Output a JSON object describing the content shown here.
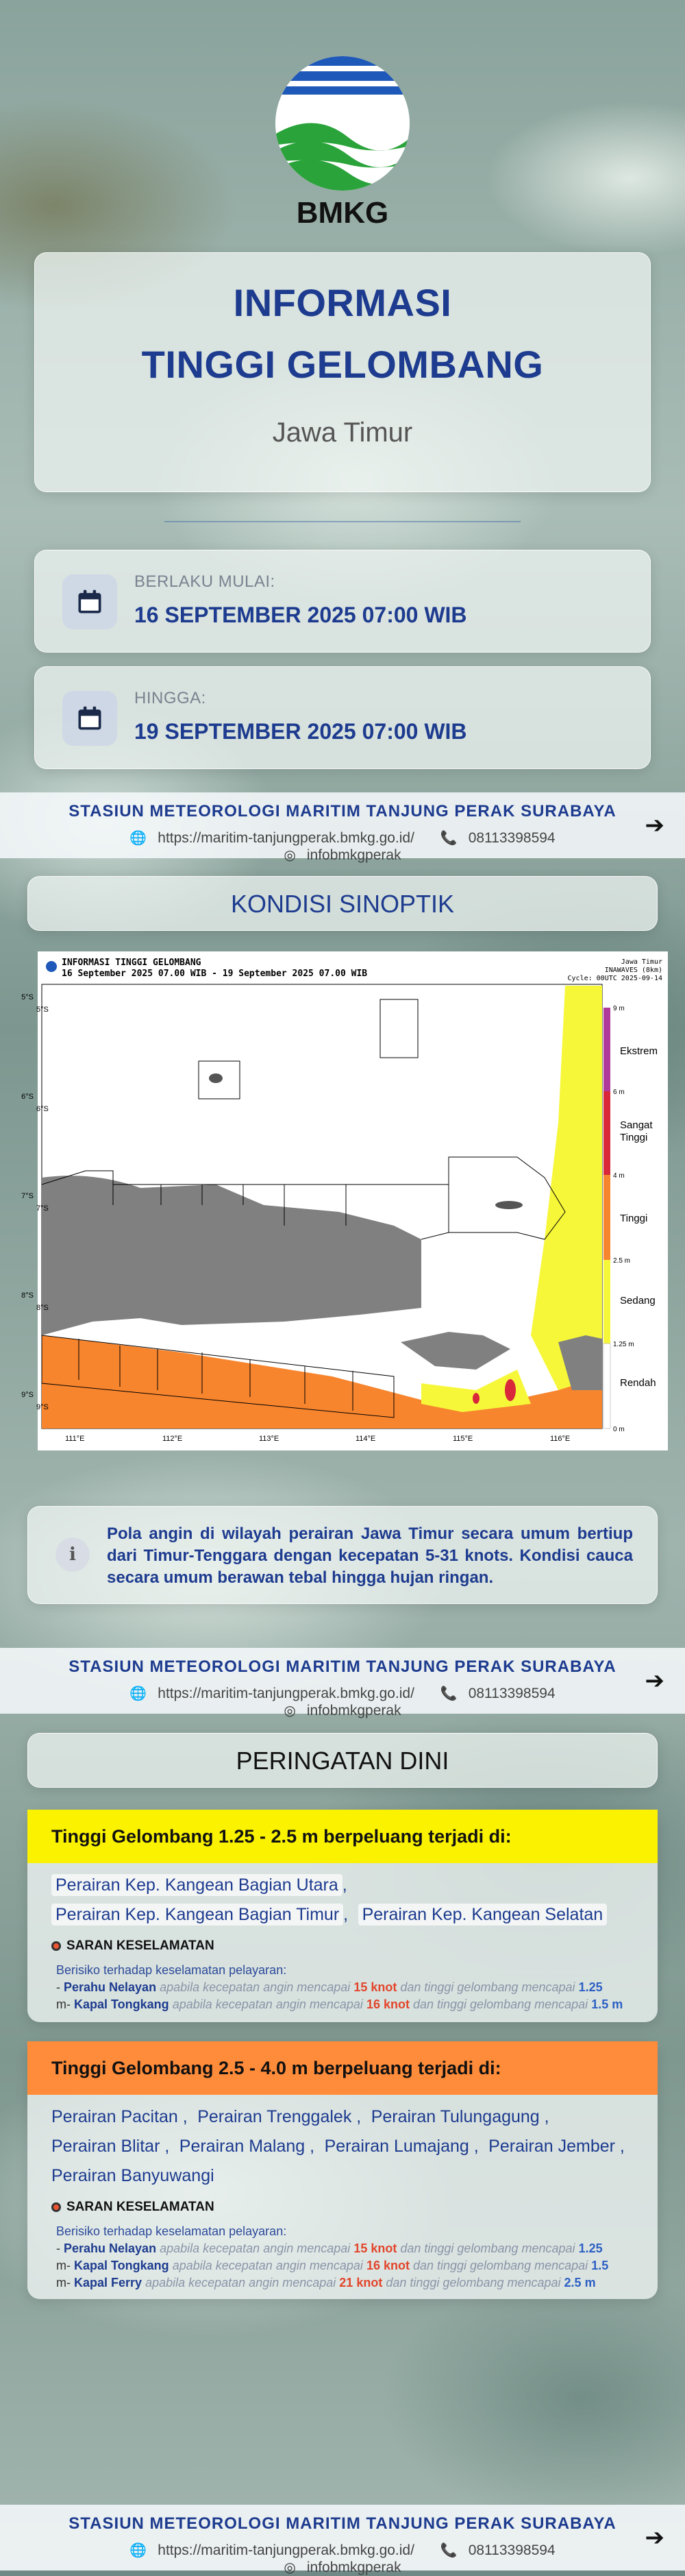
{
  "logo": {
    "text": "BMKG"
  },
  "header": {
    "title_line1": "INFORMASI",
    "title_line2": "TINGGI GELOMBANG",
    "region": "Jawa Timur"
  },
  "validity": {
    "start_label": "BERLAKU MULAI:",
    "start_value": "16 SEPTEMBER 2025 07:00 WIB",
    "end_label": "HINGGA:",
    "end_value": "19 SEPTEMBER 2025 07:00 WIB"
  },
  "station": {
    "name": "STASIUN METEOROLOGI MARITIM TANJUNG PERAK SURABAYA",
    "website": "https://maritim-tanjungperak.bmkg.go.id/",
    "phone": "08113398594",
    "instagram": "infobmkgperak"
  },
  "sinoptik": {
    "heading": "KONDISI SINOPTIK",
    "map": {
      "title": "INFORMASI TINGGI GELOMBANG",
      "period": "16 September 2025 07.00 WIB - 19 September 2025 07.00 WIB",
      "region": "Jawa Timur",
      "model": "INAWAVES (8km)",
      "cycle": "Cycle: 00UTC 2025-09-14",
      "lat_labels": [
        "5°S",
        "6°S",
        "7°S",
        "8°S",
        "9°S"
      ],
      "lon_labels": [
        "111°E",
        "112°E",
        "113°E",
        "114°E",
        "115°E",
        "116°E"
      ],
      "legend": [
        {
          "label": "Ekstrem",
          "color": "#b03a9a"
        },
        {
          "label": "Sangat Tinggi",
          "color": "#d8283a"
        },
        {
          "label": "Tinggi",
          "color": "#f7852e"
        },
        {
          "label": "Sedang",
          "color": "#f7f73a"
        },
        {
          "label": "Rendah",
          "color": "#ffffff"
        }
      ],
      "legend_ticks": [
        "9 m",
        "6 m",
        "4 m",
        "2.5 m",
        "1.25 m",
        "0 m"
      ]
    },
    "description": "Pola angin di wilayah perairan Jawa Timur secara umum bertiup dari Timur-Tenggara dengan kecepatan 5-31 knots. Kondisi cauca secara umum berawan tebal hingga hujan ringan."
  },
  "peringatan": {
    "heading": "PERINGATAN DINI",
    "saran_label": "SARAN KESELAMATAN",
    "risk_label": "Berisiko terhadap keselamatan pelayaran:",
    "warnings": [
      {
        "title": "Tinggi Gelombang 1.25 - 2.5 m berpeluang terjadi di:",
        "areas": [
          "Perairan Kep. Kangean Bagian Utara",
          "Perairan Kep. Kangean Bagian Timur",
          "Perairan Kep. Kangean Selatan"
        ],
        "vessels": [
          {
            "prefix": "- ",
            "name": "Perahu Nelayan",
            "wind": "15 knot",
            "wave_suffix": "1.25"
          },
          {
            "prefix": "m- ",
            "name": "Kapal Tongkang",
            "wind": "16 knot",
            "wave_suffix": "1.5 m"
          }
        ]
      },
      {
        "title": "Tinggi Gelombang 2.5 - 4.0 m berpeluang terjadi di:",
        "areas": [
          "Perairan Pacitan",
          "Perairan Trenggalek",
          "Perairan Tulungagung",
          "Perairan Blitar",
          "Perairan Malang",
          "Perairan Lumajang",
          "Perairan Jember",
          "Perairan Banyuwangi"
        ],
        "vessels": [
          {
            "prefix": "- ",
            "name": "Perahu Nelayan",
            "wind": "15 knot",
            "wave_suffix": "1.25"
          },
          {
            "prefix": "m- ",
            "name": "Kapal Tongkang",
            "wind": "16 knot",
            "wave_suffix": "1.5"
          },
          {
            "prefix": "m- ",
            "name": "Kapal Ferry",
            "wind": "21 knot",
            "wave_suffix": "2.5 m"
          }
        ]
      }
    ],
    "wind_phrase": "apabila kecepatan angin mencapai",
    "wave_phrase": "dan tinggi gelombang mencapai"
  }
}
